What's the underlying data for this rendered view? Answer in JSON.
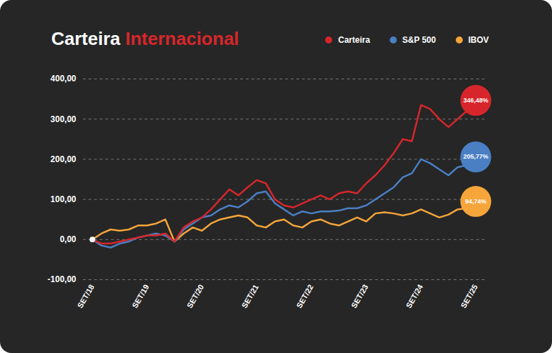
{
  "chart_data": {
    "type": "line",
    "title": "Carteira Internacional",
    "categories": [
      "SET/18",
      null,
      null,
      null,
      null,
      null,
      "SET/19",
      null,
      null,
      null,
      null,
      null,
      "SET/20",
      null,
      null,
      null,
      null,
      null,
      "SET/21",
      null,
      null,
      null,
      null,
      null,
      "SET/22",
      null,
      null,
      null,
      null,
      null,
      "SET/23",
      null,
      null,
      null,
      null,
      null,
      "SET/24",
      null,
      null,
      null,
      null,
      null,
      "SET/25"
    ],
    "series": [
      {
        "name": "Carteira",
        "color": "#d7262b",
        "values": [
          0,
          -10,
          -10,
          -5,
          0,
          5,
          10,
          10,
          15,
          -5,
          30,
          45,
          55,
          75,
          100,
          125,
          110,
          130,
          148,
          140,
          100,
          85,
          80,
          90,
          100,
          110,
          100,
          115,
          120,
          115,
          140,
          160,
          185,
          215,
          250,
          245,
          335,
          325,
          300,
          280,
          300,
          320,
          346.48
        ],
        "value_labels": [
          null,
          null,
          null,
          null,
          null,
          null,
          null,
          null,
          null,
          null,
          null,
          null,
          null,
          null,
          null,
          null,
          null,
          null,
          null,
          null,
          null,
          null,
          null,
          null,
          null,
          null,
          null,
          null,
          null,
          null,
          null,
          null,
          null,
          null,
          null,
          null,
          null,
          null,
          null,
          null,
          null,
          null,
          "346,48%"
        ]
      },
      {
        "name": "S&P 500",
        "color": "#4a7fc4",
        "values": [
          0,
          -15,
          -20,
          -10,
          -5,
          5,
          10,
          15,
          10,
          -5,
          25,
          40,
          55,
          60,
          75,
          85,
          80,
          95,
          115,
          120,
          90,
          75,
          60,
          70,
          65,
          70,
          70,
          72,
          78,
          78,
          85,
          100,
          115,
          130,
          155,
          165,
          200,
          190,
          175,
          160,
          180,
          185,
          205.77
        ],
        "value_labels": [
          null,
          null,
          null,
          null,
          null,
          null,
          null,
          null,
          null,
          null,
          null,
          null,
          null,
          null,
          null,
          null,
          null,
          null,
          null,
          null,
          null,
          null,
          null,
          null,
          null,
          null,
          null,
          null,
          null,
          null,
          null,
          null,
          null,
          null,
          null,
          null,
          null,
          null,
          null,
          null,
          null,
          null,
          "205,77%"
        ]
      },
      {
        "name": "IBOV",
        "color": "#f6a53a",
        "values": [
          0,
          15,
          25,
          22,
          25,
          35,
          35,
          40,
          50,
          -5,
          15,
          30,
          22,
          40,
          50,
          55,
          60,
          55,
          35,
          30,
          45,
          50,
          35,
          30,
          45,
          50,
          40,
          35,
          45,
          55,
          45,
          65,
          68,
          65,
          60,
          65,
          75,
          65,
          55,
          62,
          75,
          78,
          94.74
        ],
        "value_labels": [
          null,
          null,
          null,
          null,
          null,
          null,
          null,
          null,
          null,
          null,
          null,
          null,
          null,
          null,
          null,
          null,
          null,
          null,
          null,
          null,
          null,
          null,
          null,
          null,
          null,
          null,
          null,
          null,
          null,
          null,
          null,
          null,
          null,
          null,
          null,
          null,
          null,
          null,
          null,
          null,
          null,
          null,
          "94,74%"
        ]
      }
    ],
    "ylim": [
      -100,
      400
    ],
    "yticks": [
      {
        "value": -100,
        "label": "-100,00"
      },
      {
        "value": 0,
        "label": "0,00"
      },
      {
        "value": 100,
        "label": "100,00"
      },
      {
        "value": 200,
        "label": "200,00"
      },
      {
        "value": 300,
        "label": "300,00"
      },
      {
        "value": 400,
        "label": "400,00"
      }
    ],
    "grid": true,
    "legend": "top-right",
    "data_labels": true
  }
}
